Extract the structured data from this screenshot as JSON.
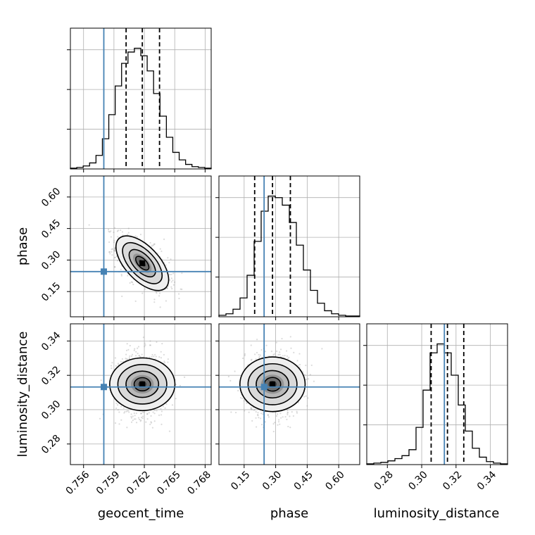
{
  "chart_data": {
    "type": "corner",
    "parameters": [
      {
        "key": "geocent_time",
        "label": "geocent_time",
        "range": [
          0.7547,
          0.7686
        ],
        "ticks": [
          0.756,
          0.759,
          0.762,
          0.765,
          0.768
        ],
        "tick_labels": [
          "0.756",
          "0.759",
          "0.762",
          "0.765",
          "0.768"
        ],
        "truth": 0.758,
        "quantiles": [
          0.7602,
          0.7618,
          0.7635
        ],
        "mean": 0.7618,
        "sd": 0.0013
      },
      {
        "key": "phase",
        "label": "phase",
        "range": [
          0.03,
          0.7
        ],
        "ticks": [
          0.15,
          0.3,
          0.45,
          0.6
        ],
        "tick_labels": [
          "0.15",
          "0.30",
          "0.45",
          "0.60"
        ],
        "truth": 0.245,
        "quantiles": [
          0.2,
          0.285,
          0.37
        ],
        "mean": 0.285,
        "sd": 0.065
      },
      {
        "key": "luminosity_distance",
        "label": "luminosity_distance",
        "range": [
          0.268,
          0.35
        ],
        "ticks": [
          0.28,
          0.3,
          0.32,
          0.34
        ],
        "tick_labels": [
          "0.28",
          "0.30",
          "0.32",
          "0.34"
        ],
        "truth": 0.3132,
        "quantiles": [
          0.3055,
          0.315,
          0.3245
        ],
        "mean": 0.3148,
        "sd": 0.0095
      }
    ],
    "histograms": {
      "geocent_time": [
        1,
        2,
        4,
        8,
        18,
        40,
        72,
        110,
        140,
        155,
        160,
        150,
        130,
        100,
        70,
        42,
        22,
        12,
        6,
        3,
        2,
        1
      ],
      "phase": [
        2,
        4,
        10,
        25,
        55,
        100,
        140,
        160,
        158,
        148,
        125,
        95,
        62,
        35,
        18,
        8,
        4,
        2,
        1,
        1
      ],
      "luminosity_distance": [
        1,
        2,
        3,
        5,
        8,
        12,
        20,
        50,
        100,
        150,
        162,
        150,
        120,
        80,
        45,
        22,
        10,
        4,
        2,
        1
      ]
    },
    "correlations": {
      "phase|geocent_time": -0.6,
      "luminosity_distance|geocent_time": 0.0,
      "luminosity_distance|phase": 0.0
    },
    "contour_levels_sigma": [
      0.5,
      1.0,
      1.5,
      2.0
    ],
    "scatter_points": 900,
    "truth_color": "#4682b4",
    "hist_color": "#000000",
    "grid": true
  }
}
